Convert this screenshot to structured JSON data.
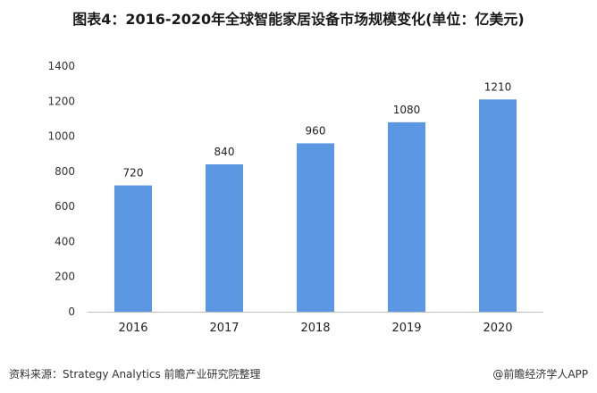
{
  "chart_data": {
    "type": "bar",
    "title": "图表4：2016-2020年全球智能家居设备市场规模变化(单位：亿美元)",
    "xlabel": "",
    "ylabel": "",
    "categories": [
      "2016",
      "2017",
      "2018",
      "2019",
      "2020"
    ],
    "values": [
      720,
      840,
      960,
      1080,
      1210
    ],
    "data_labels": [
      "720",
      "840",
      "960",
      "1080",
      "1210"
    ],
    "ylim": [
      0,
      1400
    ],
    "yticks": [
      "0",
      "200",
      "400",
      "600",
      "800",
      "1000",
      "1200",
      "1400"
    ],
    "grid": false,
    "legend": "none",
    "bar_color": "#5b97e3"
  },
  "footer": {
    "source": "资料来源：Strategy Analytics 前瞻产业研究院整理",
    "brand": "@前瞻经济学人APP"
  }
}
